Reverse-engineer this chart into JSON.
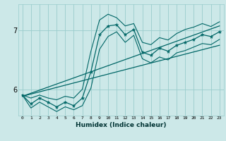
{
  "title": "",
  "xlabel": "Humidex (Indice chaleur)",
  "bg_color": "#cce8e8",
  "grid_color": "#99cccc",
  "line_color": "#006666",
  "xlim": [
    -0.5,
    23.5
  ],
  "ylim": [
    5.55,
    7.45
  ],
  "yticks": [
    6,
    7
  ],
  "xticks": [
    0,
    1,
    2,
    3,
    4,
    5,
    6,
    7,
    8,
    9,
    10,
    11,
    12,
    13,
    14,
    15,
    16,
    17,
    18,
    19,
    20,
    21,
    22,
    23
  ],
  "main_y": [
    5.9,
    5.75,
    5.85,
    5.78,
    5.7,
    5.78,
    5.72,
    5.85,
    6.3,
    6.93,
    7.08,
    7.1,
    6.93,
    7.02,
    6.63,
    6.58,
    6.7,
    6.65,
    6.75,
    6.8,
    6.85,
    6.93,
    6.9,
    6.98
  ],
  "upper_y": [
    5.9,
    5.85,
    5.9,
    5.85,
    5.82,
    5.88,
    5.85,
    6.0,
    6.65,
    7.18,
    7.28,
    7.22,
    7.08,
    7.12,
    6.8,
    6.76,
    6.88,
    6.84,
    6.95,
    7.02,
    7.06,
    7.12,
    7.07,
    7.15
  ],
  "lower_y": [
    5.9,
    5.68,
    5.78,
    5.7,
    5.62,
    5.7,
    5.65,
    5.72,
    6.02,
    6.68,
    6.9,
    6.98,
    6.8,
    6.92,
    6.52,
    6.45,
    6.55,
    6.5,
    6.62,
    6.66,
    6.72,
    6.78,
    6.76,
    6.85
  ],
  "trend1_x": [
    0,
    23
  ],
  "trend1_y": [
    5.88,
    7.08
  ],
  "trend2_x": [
    0,
    23
  ],
  "trend2_y": [
    5.88,
    6.75
  ]
}
